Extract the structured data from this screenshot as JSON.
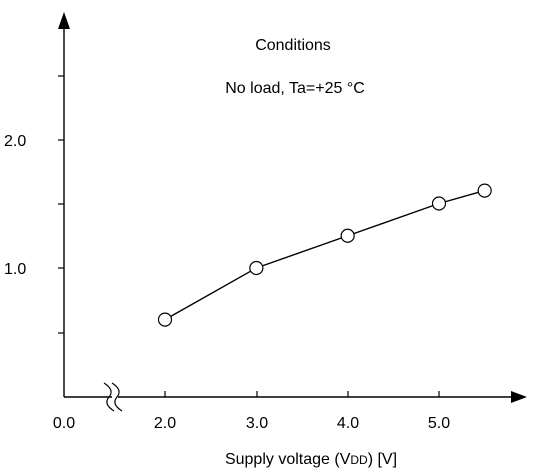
{
  "chart_data": {
    "type": "line",
    "title": "",
    "annotations": [
      "Conditions",
      "No load, Ta=+25 °C"
    ],
    "xlabel": "Supply voltage (VDD) [V]",
    "xlabel_parts": {
      "prefix": "Supply voltage (V",
      "subscript": "DD",
      "suffix": ") [V]"
    },
    "ylabel": "",
    "x_tick_labels": [
      "0.0",
      "2.0",
      "3.0",
      "4.0",
      "5.0"
    ],
    "y_tick_labels": [
      "1.0",
      "2.0"
    ],
    "x_axis_break": true,
    "xlim": [
      0.0,
      5.7
    ],
    "ylim": [
      0.0,
      2.8
    ],
    "grid": false,
    "series": [
      {
        "x": [
          2.0,
          3.0,
          4.0,
          5.0,
          5.5
        ],
        "y": [
          0.6,
          1.0,
          1.25,
          1.5,
          1.6
        ]
      }
    ]
  }
}
